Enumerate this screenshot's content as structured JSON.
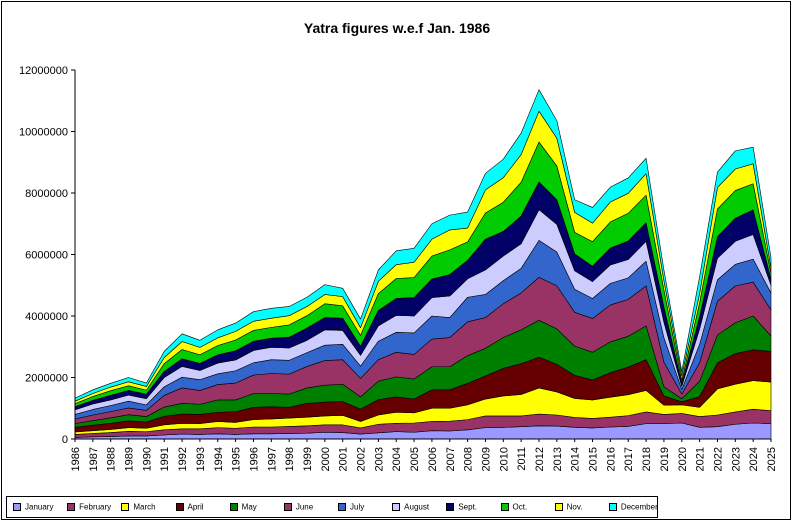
{
  "chart_data": {
    "type": "area",
    "stacked": true,
    "title": "Yatra figures w.e.f Jan. 1986",
    "xlabel": "",
    "ylabel": "",
    "ylim": [
      0,
      12000000
    ],
    "yticks": [
      "0",
      "2000000",
      "4000000",
      "6000000",
      "8000000",
      "10000000",
      "12000000"
    ],
    "legend_position": "bottom",
    "x": [
      "1986",
      "1987",
      "1988",
      "1989",
      "1990",
      "1991",
      "1992",
      "1993",
      "1994",
      "1995",
      "1996",
      "1997",
      "1998",
      "1999",
      "2000",
      "2001",
      "2002",
      "2003",
      "2004",
      "2005",
      "2006",
      "2007",
      "2008",
      "2009",
      "2010",
      "2011",
      "2012",
      "2013",
      "2014",
      "2015",
      "2016",
      "2017",
      "2018",
      "2019",
      "2020",
      "2021",
      "2022",
      "2023",
      "2024",
      "2025"
    ],
    "series": [
      {
        "name": "January",
        "color": "#9999ff",
        "values": [
          50000,
          70000,
          80000,
          100000,
          100000,
          130000,
          160000,
          150000,
          170000,
          150000,
          170000,
          170000,
          180000,
          190000,
          220000,
          210000,
          160000,
          200000,
          240000,
          220000,
          270000,
          260000,
          300000,
          370000,
          380000,
          400000,
          430000,
          420000,
          380000,
          360000,
          390000,
          410000,
          500000,
          500000,
          520000,
          380000,
          400000,
          480000,
          520000,
          500000
        ]
      },
      {
        "name": "February",
        "color": "#993366",
        "values": [
          100000,
          110000,
          130000,
          150000,
          140000,
          170000,
          170000,
          180000,
          200000,
          200000,
          220000,
          220000,
          230000,
          240000,
          240000,
          250000,
          200000,
          280000,
          270000,
          300000,
          300000,
          320000,
          330000,
          380000,
          370000,
          350000,
          380000,
          360000,
          320000,
          310000,
          320000,
          350000,
          380000,
          300000,
          310000,
          350000,
          380000,
          400000,
          450000,
          420000
        ]
      },
      {
        "name": "March",
        "color": "#ffff00",
        "values": [
          80000,
          90000,
          100000,
          120000,
          110000,
          160000,
          180000,
          170000,
          200000,
          190000,
          240000,
          260000,
          270000,
          280000,
          290000,
          310000,
          210000,
          300000,
          360000,
          330000,
          430000,
          420000,
          480000,
          550000,
          650000,
          700000,
          850000,
          750000,
          620000,
          600000,
          650000,
          680000,
          700000,
          300000,
          280000,
          300000,
          850000,
          900000,
          930000,
          930000
        ]
      },
      {
        "name": "April",
        "color": "#660000",
        "values": [
          150000,
          180000,
          200000,
          220000,
          200000,
          280000,
          300000,
          300000,
          300000,
          350000,
          400000,
          400000,
          350000,
          450000,
          450000,
          450000,
          400000,
          500000,
          500000,
          450000,
          600000,
          600000,
          700000,
          750000,
          900000,
          1000000,
          1000000,
          900000,
          750000,
          650000,
          800000,
          900000,
          1000000,
          300000,
          100000,
          350000,
          850000,
          1000000,
          1000000,
          1000000
        ]
      },
      {
        "name": "May",
        "color": "#008000",
        "values": [
          120000,
          150000,
          180000,
          200000,
          180000,
          300000,
          350000,
          330000,
          400000,
          380000,
          450000,
          430000,
          430000,
          500000,
          550000,
          560000,
          400000,
          600000,
          650000,
          650000,
          750000,
          750000,
          900000,
          900000,
          1000000,
          1100000,
          1200000,
          1150000,
          950000,
          900000,
          1000000,
          1000000,
          1100000,
          300000,
          100000,
          500000,
          900000,
          1000000,
          1100000,
          500000
        ]
      },
      {
        "name": "June",
        "color": "#993366",
        "values": [
          150000,
          180000,
          200000,
          220000,
          200000,
          380000,
          500000,
          450000,
          500000,
          550000,
          600000,
          650000,
          650000,
          700000,
          800000,
          800000,
          600000,
          700000,
          800000,
          800000,
          900000,
          950000,
          1100000,
          1000000,
          1100000,
          1200000,
          1400000,
          1400000,
          1100000,
          1100000,
          1200000,
          1200000,
          1300000,
          800000,
          150000,
          600000,
          1100000,
          1200000,
          1100000,
          850000
        ]
      },
      {
        "name": "July",
        "color": "#3366cc",
        "values": [
          150000,
          180000,
          200000,
          220000,
          180000,
          280000,
          350000,
          350000,
          350000,
          400000,
          400000,
          450000,
          450000,
          450000,
          500000,
          500000,
          400000,
          600000,
          650000,
          700000,
          750000,
          650000,
          800000,
          750000,
          750000,
          800000,
          1200000,
          1100000,
          750000,
          650000,
          700000,
          700000,
          800000,
          800000,
          150000,
          600000,
          700000,
          700000,
          750000,
          550000
        ]
      },
      {
        "name": "August",
        "color": "#ccccff",
        "values": [
          150000,
          180000,
          180000,
          200000,
          200000,
          300000,
          350000,
          300000,
          350000,
          350000,
          400000,
          400000,
          400000,
          400000,
          500000,
          450000,
          350000,
          500000,
          550000,
          550000,
          600000,
          700000,
          600000,
          800000,
          800000,
          800000,
          1000000,
          900000,
          600000,
          550000,
          600000,
          600000,
          650000,
          500000,
          100000,
          500000,
          700000,
          750000,
          800000,
          250000
        ]
      },
      {
        "name": "Sept.",
        "color": "#000066",
        "values": [
          100000,
          120000,
          150000,
          150000,
          150000,
          200000,
          250000,
          230000,
          270000,
          300000,
          300000,
          300000,
          350000,
          400000,
          400000,
          400000,
          300000,
          500000,
          550000,
          600000,
          600000,
          700000,
          600000,
          1000000,
          800000,
          900000,
          900000,
          800000,
          550000,
          500000,
          550000,
          600000,
          600000,
          500000,
          100000,
          400000,
          700000,
          750000,
          800000,
          200000
        ]
      },
      {
        "name": "Oct.",
        "color": "#00cc00",
        "values": [
          100000,
          120000,
          150000,
          150000,
          130000,
          250000,
          300000,
          280000,
          300000,
          350000,
          350000,
          350000,
          400000,
          400000,
          450000,
          400000,
          350000,
          550000,
          650000,
          650000,
          750000,
          800000,
          600000,
          850000,
          950000,
          1100000,
          1300000,
          1100000,
          700000,
          800000,
          850000,
          900000,
          900000,
          550000,
          100000,
          450000,
          900000,
          900000,
          850000,
          200000
        ]
      },
      {
        "name": "Nov.",
        "color": "#ffff00",
        "values": [
          80000,
          100000,
          120000,
          130000,
          120000,
          200000,
          260000,
          240000,
          250000,
          280000,
          300000,
          300000,
          300000,
          300000,
          300000,
          300000,
          250000,
          400000,
          450000,
          500000,
          550000,
          650000,
          450000,
          750000,
          800000,
          900000,
          1000000,
          900000,
          650000,
          600000,
          650000,
          650000,
          700000,
          300000,
          150000,
          300000,
          700000,
          700000,
          650000,
          150000
        ]
      },
      {
        "name": "December",
        "color": "#00ffff",
        "values": [
          100000,
          120000,
          120000,
          140000,
          110000,
          200000,
          250000,
          230000,
          260000,
          270000,
          310000,
          320000,
          300000,
          300000,
          320000,
          270000,
          280000,
          370000,
          450000,
          450000,
          500000,
          480000,
          520000,
          540000,
          600000,
          700000,
          700000,
          570000,
          410000,
          510000,
          480000,
          500000,
          500000,
          350000,
          140000,
          550000,
          500000,
          590000,
          540000,
          350000
        ]
      }
    ],
    "legend": [
      "January",
      "February",
      "March",
      "April",
      "May",
      "June",
      "July",
      "August",
      "Sept.",
      "Oct.",
      "Nov.",
      "December"
    ]
  }
}
